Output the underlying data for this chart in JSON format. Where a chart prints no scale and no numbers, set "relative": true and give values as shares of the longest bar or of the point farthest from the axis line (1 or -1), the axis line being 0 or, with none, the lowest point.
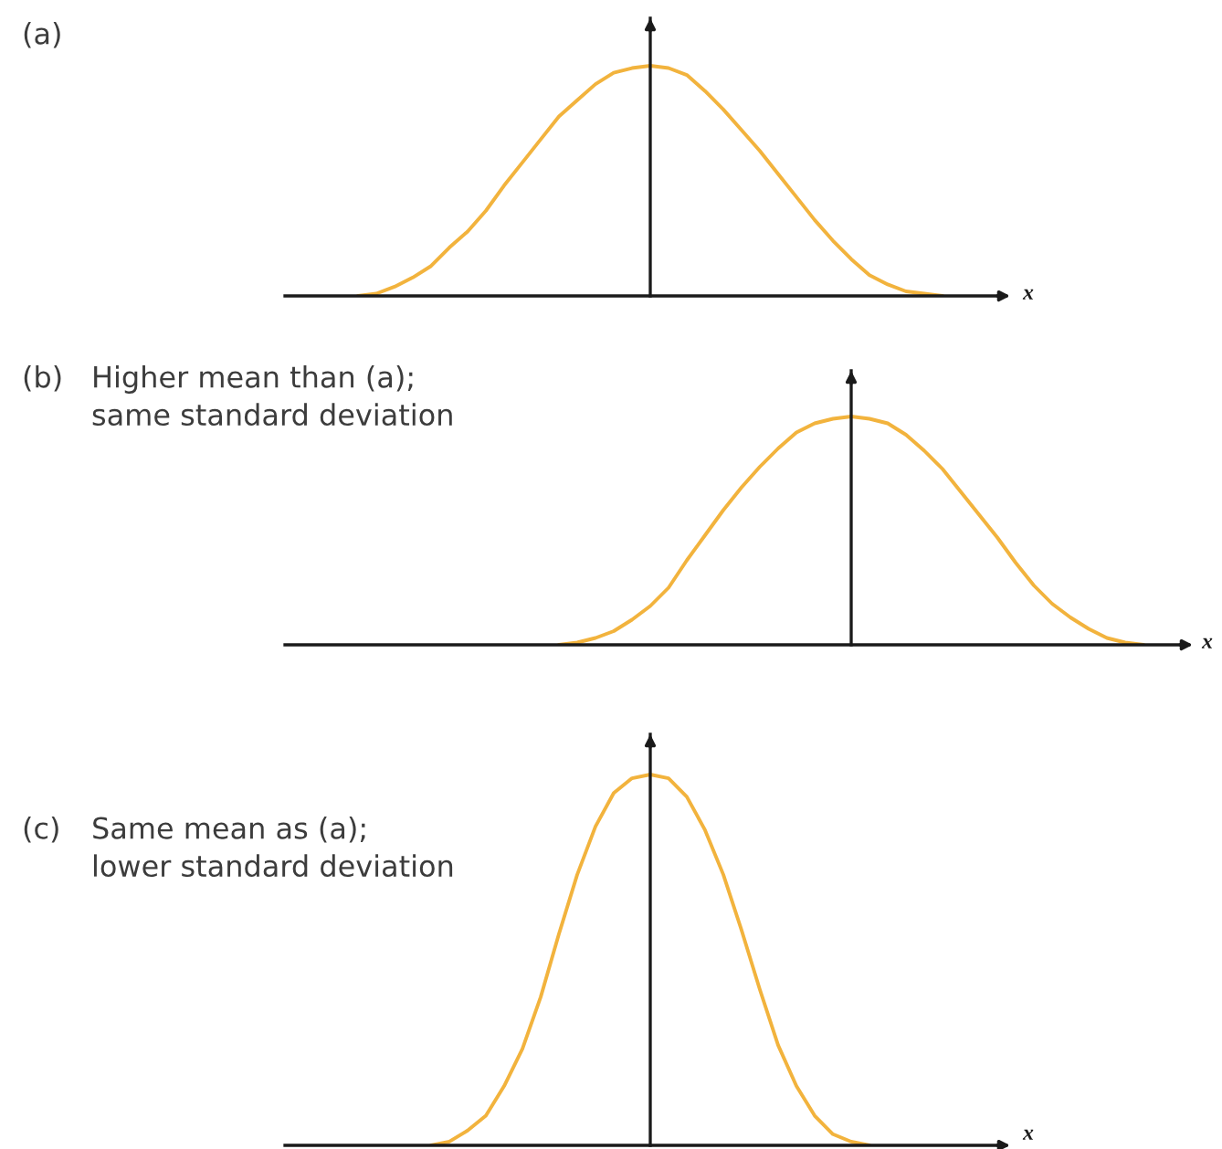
{
  "chart_data": [
    {
      "type": "line",
      "annotations": [
        "(a)"
      ],
      "xlabel": "x",
      "relative": true,
      "categories": [
        null,
        null,
        null,
        null,
        null,
        null,
        null,
        null,
        null,
        null,
        null,
        null,
        null,
        null,
        null,
        null,
        null,
        null,
        null,
        null,
        null,
        null,
        null,
        null,
        null,
        null,
        null,
        null,
        null,
        null,
        null,
        null,
        null,
        null,
        null,
        null,
        null,
        null,
        null,
        null
      ],
      "series": [
        {
          "color": "#f2b33d",
          "values": [
            null,
            null,
            null,
            null,
            0,
            0.01,
            0.04,
            0.08,
            0.13,
            0.21,
            0.28,
            0.37,
            0.48,
            0.58,
            0.68,
            0.78,
            0.85,
            0.92,
            0.97,
            0.99,
            1,
            0.99,
            0.96,
            0.89,
            0.81,
            0.72,
            0.63,
            0.53,
            0.43,
            0.33,
            0.24,
            0.16,
            0.09,
            0.05,
            0.02,
            0.01,
            0,
            null,
            null,
            null
          ]
        }
      ]
    },
    {
      "type": "line",
      "annotations": [
        "(b)"
      ],
      "title": "Higher mean than (a);\nsame standard deviation",
      "xlabel": "x",
      "relative": true,
      "categories": [
        null,
        null,
        null,
        null,
        null,
        null,
        null,
        null,
        null,
        null,
        null,
        null,
        null,
        null,
        null,
        null,
        null,
        null,
        null,
        null,
        null,
        null,
        null,
        null,
        null,
        null,
        null,
        null,
        null,
        null,
        null,
        null,
        null,
        null,
        null,
        null,
        null,
        null,
        null,
        null,
        null,
        null,
        null,
        null,
        null,
        null,
        null,
        null,
        null,
        null
      ],
      "series": [
        {
          "color": "#f2b33d",
          "values": [
            null,
            null,
            null,
            null,
            null,
            null,
            null,
            null,
            null,
            null,
            null,
            null,
            null,
            null,
            null,
            0,
            0.01,
            0.03,
            0.06,
            0.11,
            0.17,
            0.25,
            0.37,
            0.48,
            0.59,
            0.69,
            0.78,
            0.86,
            0.93,
            0.97,
            0.99,
            1,
            0.99,
            0.97,
            0.92,
            0.85,
            0.77,
            0.67,
            0.57,
            0.47,
            0.36,
            0.26,
            0.18,
            0.12,
            0.07,
            0.03,
            0.01,
            0,
            null,
            null
          ]
        }
      ]
    },
    {
      "type": "line",
      "annotations": [
        "(c)"
      ],
      "title": "Same mean as (a);\nlower standard deviation",
      "xlabel": "x",
      "relative": true,
      "categories": [
        null,
        null,
        null,
        null,
        null,
        null,
        null,
        null,
        null,
        null,
        null,
        null,
        null,
        null,
        null,
        null,
        null,
        null,
        null,
        null,
        null,
        null,
        null,
        null,
        null,
        null,
        null,
        null,
        null,
        null,
        null,
        null,
        null,
        null,
        null,
        null,
        null,
        null,
        null,
        null
      ],
      "series": [
        {
          "color": "#f2b33d",
          "values": [
            null,
            null,
            null,
            null,
            null,
            null,
            null,
            null,
            0,
            0.01,
            0.04,
            0.08,
            0.16,
            0.26,
            0.4,
            0.57,
            0.73,
            0.86,
            0.95,
            0.99,
            1,
            0.99,
            0.94,
            0.85,
            0.73,
            0.58,
            0.42,
            0.27,
            0.16,
            0.08,
            0.03,
            0.01,
            0,
            null,
            null,
            null,
            null,
            null,
            null,
            null
          ]
        }
      ]
    }
  ]
}
